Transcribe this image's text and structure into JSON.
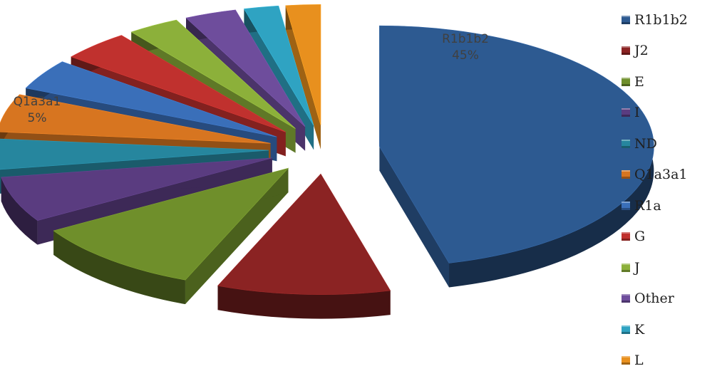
{
  "chart_data": {
    "type": "pie",
    "style": "exploded 3d pie",
    "categories": [
      "R1b1b2",
      "J2",
      "E",
      "I",
      "ND",
      "Q1a3a1",
      "R1a",
      "G",
      "J",
      "Other",
      "K",
      "L"
    ],
    "values": [
      45,
      10,
      10,
      6,
      4,
      5,
      4,
      4,
      3,
      3,
      2,
      2
    ],
    "colors": [
      "#2d5a91",
      "#8b2323",
      "#6f8f2b",
      "#5a3c80",
      "#26869e",
      "#d77520",
      "#3a6fb9",
      "#c0312e",
      "#8cb03a",
      "#6e4d9c",
      "#2fa3c2",
      "#e8901e"
    ],
    "data_labels": [
      {
        "category": "R1b1b2",
        "name": "R1b1b2",
        "value": "45%"
      },
      {
        "category": "Q1a3a1",
        "name": "Q1a3a1",
        "value": "5%"
      }
    ],
    "legend_position": "right",
    "title": "",
    "xlabel": "",
    "ylabel": ""
  }
}
